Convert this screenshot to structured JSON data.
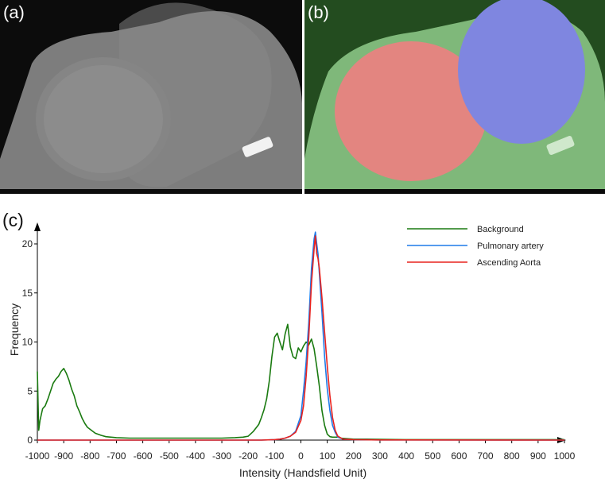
{
  "panels": {
    "a_label": "(a)",
    "b_label": "(b)",
    "c_label": "(c)"
  },
  "colors": {
    "background": "#1a7a10",
    "pulmonary": "#1f7ae8",
    "aorta": "#e8231f",
    "mask_green": "#7fc97a",
    "mask_red": "#e87f7a",
    "mask_blue": "#7f86e8"
  },
  "chart_data": {
    "type": "line",
    "xlabel": "Intensity (Handsfield Unit)",
    "ylabel": "Frequency",
    "xlim": [
      -1000,
      1000
    ],
    "ylim": [
      0,
      22
    ],
    "x_ticks": [
      -1000,
      -900,
      -800,
      -700,
      -600,
      -500,
      -400,
      -300,
      -200,
      -100,
      0,
      100,
      200,
      300,
      400,
      500,
      600,
      700,
      800,
      900,
      1000
    ],
    "y_ticks": [
      0,
      5,
      10,
      15,
      20
    ],
    "grid": false,
    "legend_position": "top-right",
    "series": [
      {
        "name": "Background",
        "x": [
          -1000,
          -995,
          -990,
          -980,
          -970,
          -960,
          -950,
          -940,
          -930,
          -920,
          -910,
          -900,
          -890,
          -880,
          -870,
          -860,
          -850,
          -840,
          -830,
          -820,
          -810,
          -800,
          -780,
          -760,
          -740,
          -720,
          -700,
          -650,
          -600,
          -550,
          -500,
          -450,
          -400,
          -350,
          -300,
          -250,
          -220,
          -200,
          -180,
          -160,
          -150,
          -140,
          -130,
          -120,
          -110,
          -100,
          -90,
          -80,
          -70,
          -60,
          -50,
          -40,
          -30,
          -20,
          -10,
          0,
          10,
          20,
          30,
          40,
          50,
          60,
          70,
          80,
          90,
          100,
          110,
          120,
          130,
          140,
          150,
          170,
          200,
          250,
          300,
          400,
          500,
          600,
          700,
          800,
          900,
          1000
        ],
        "y": [
          7,
          1,
          2,
          3.2,
          3.5,
          4.2,
          5,
          5.8,
          6.2,
          6.5,
          7,
          7.3,
          6.8,
          6.1,
          5.2,
          4.5,
          3.5,
          2.9,
          2.2,
          1.7,
          1.3,
          1.1,
          0.7,
          0.5,
          0.35,
          0.3,
          0.25,
          0.2,
          0.2,
          0.2,
          0.2,
          0.2,
          0.2,
          0.2,
          0.2,
          0.25,
          0.3,
          0.4,
          0.9,
          1.6,
          2.3,
          3.1,
          4.2,
          6,
          8.5,
          10.5,
          10.9,
          10,
          9.2,
          10.8,
          11.8,
          9.5,
          8.5,
          8.3,
          9.4,
          9,
          9.6,
          10,
          9.7,
          10.3,
          9.3,
          7.5,
          5.5,
          3,
          1.5,
          0.6,
          0.35,
          0.3,
          0.3,
          0.3,
          0.2,
          0.15,
          0.1,
          0.1,
          0.08,
          0.05,
          0.05,
          0.05,
          0.05,
          0.05,
          0.05,
          0.05
        ]
      },
      {
        "name": "Pulmonary artery",
        "x": [
          -1000,
          -150,
          -100,
          -80,
          -60,
          -40,
          -20,
          0,
          10,
          20,
          30,
          40,
          50,
          55,
          60,
          65,
          70,
          80,
          90,
          100,
          110,
          120,
          130,
          140,
          160,
          200,
          300,
          1000
        ],
        "y": [
          0,
          0,
          0.05,
          0.1,
          0.2,
          0.4,
          0.9,
          2.5,
          5,
          8,
          12,
          17.5,
          20.5,
          21.2,
          20,
          19,
          17,
          13,
          8.5,
          5.2,
          3,
          1.5,
          0.8,
          0.3,
          0.1,
          0.05,
          0.02,
          0
        ]
      },
      {
        "name": "Ascending Aorta",
        "x": [
          -1000,
          -150,
          -100,
          -80,
          -60,
          -40,
          -20,
          0,
          10,
          20,
          30,
          40,
          50,
          55,
          60,
          65,
          70,
          80,
          90,
          100,
          110,
          120,
          130,
          140,
          160,
          200,
          300,
          1000
        ],
        "y": [
          0,
          0,
          0.05,
          0.1,
          0.2,
          0.4,
          0.8,
          2,
          3.5,
          6.5,
          10.5,
          16,
          19.5,
          20.8,
          19,
          18.5,
          17.5,
          14.5,
          11,
          7.5,
          4.5,
          2.3,
          1,
          0.4,
          0.1,
          0.05,
          0.02,
          0
        ]
      }
    ]
  }
}
